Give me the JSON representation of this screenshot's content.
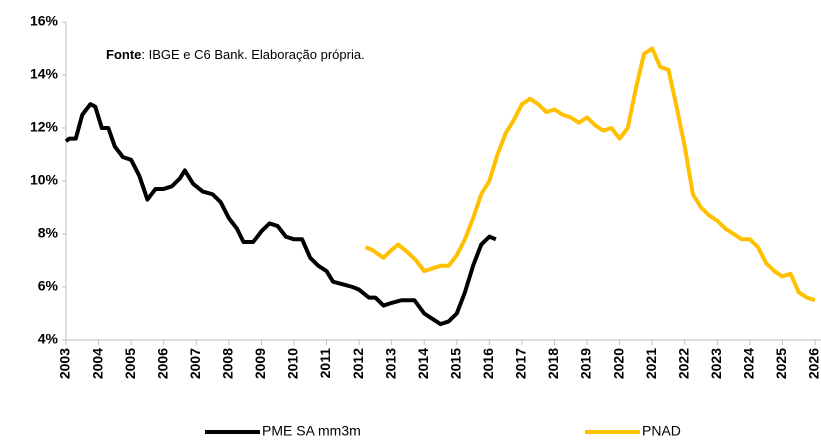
{
  "chart_data": {
    "type": "line",
    "annotation": {
      "bold": "Fonte",
      "text": ": IBGE e C6 Bank. Elaboração própria."
    },
    "xlim": [
      2003,
      2026
    ],
    "xticks": [
      2003,
      2004,
      2005,
      2006,
      2007,
      2008,
      2009,
      2010,
      2011,
      2012,
      2013,
      2014,
      2015,
      2016,
      2017,
      2018,
      2019,
      2020,
      2021,
      2022,
      2023,
      2024,
      2025,
      2026
    ],
    "ylim": [
      4,
      16
    ],
    "yticks": [
      {
        "value": 4,
        "label": "4%"
      },
      {
        "value": 6,
        "label": "6%"
      },
      {
        "value": 8,
        "label": "8%"
      },
      {
        "value": 10,
        "label": "10%"
      },
      {
        "value": 12,
        "label": "12%"
      },
      {
        "value": 14,
        "label": "14%"
      },
      {
        "value": 16,
        "label": "16%"
      }
    ],
    "grid": false,
    "series": [
      {
        "name": "PME SA mm3m",
        "color": "#000000",
        "x": [
          2003.0,
          2003.1,
          2003.3,
          2003.5,
          2003.75,
          2003.9,
          2004.1,
          2004.3,
          2004.5,
          2004.75,
          2005.0,
          2005.25,
          2005.5,
          2005.75,
          2006.0,
          2006.25,
          2006.5,
          2006.65,
          2006.9,
          2007.2,
          2007.5,
          2007.75,
          2008.0,
          2008.25,
          2008.45,
          2008.75,
          2009.0,
          2009.25,
          2009.5,
          2009.75,
          2010.0,
          2010.25,
          2010.5,
          2010.75,
          2011.0,
          2011.2,
          2011.5,
          2011.8,
          2012.0,
          2012.3,
          2012.5,
          2012.75,
          2013.0,
          2013.3,
          2013.5,
          2013.7,
          2014.0,
          2014.25,
          2014.5,
          2014.75,
          2015.0,
          2015.25,
          2015.5,
          2015.75,
          2016.0,
          2016.2
        ],
        "values": [
          11.5,
          11.6,
          11.6,
          12.5,
          12.9,
          12.8,
          12.0,
          12.0,
          11.3,
          10.9,
          10.8,
          10.2,
          9.3,
          9.7,
          9.7,
          9.8,
          10.1,
          10.4,
          9.9,
          9.6,
          9.5,
          9.2,
          8.6,
          8.2,
          7.7,
          7.7,
          8.1,
          8.4,
          8.3,
          7.9,
          7.8,
          7.8,
          7.1,
          6.8,
          6.6,
          6.2,
          6.1,
          6.0,
          5.9,
          5.6,
          5.6,
          5.3,
          5.4,
          5.5,
          5.5,
          5.5,
          5.0,
          4.8,
          4.6,
          4.7,
          5.0,
          5.8,
          6.8,
          7.6,
          7.9,
          7.8
        ]
      },
      {
        "name": "PNAD",
        "color": "#ffc000",
        "x": [
          2012.2,
          2012.4,
          2012.75,
          2013.0,
          2013.2,
          2013.5,
          2013.75,
          2014.0,
          2014.25,
          2014.5,
          2014.75,
          2015.0,
          2015.25,
          2015.5,
          2015.75,
          2016.0,
          2016.25,
          2016.5,
          2016.75,
          2017.0,
          2017.25,
          2017.5,
          2017.75,
          2018.0,
          2018.25,
          2018.5,
          2018.75,
          2019.0,
          2019.25,
          2019.5,
          2019.75,
          2020.0,
          2020.25,
          2020.5,
          2020.75,
          2021.0,
          2021.25,
          2021.5,
          2021.75,
          2022.0,
          2022.25,
          2022.5,
          2022.75,
          2023.0,
          2023.25,
          2023.5,
          2023.75,
          2024.0,
          2024.25,
          2024.5,
          2024.75,
          2025.0,
          2025.25,
          2025.5,
          2025.75,
          2026.0
        ],
        "values": [
          7.5,
          7.4,
          7.1,
          7.4,
          7.6,
          7.3,
          7.0,
          6.6,
          6.7,
          6.8,
          6.8,
          7.2,
          7.8,
          8.6,
          9.5,
          10.0,
          11.0,
          11.8,
          12.3,
          12.9,
          13.1,
          12.9,
          12.6,
          12.7,
          12.5,
          12.4,
          12.2,
          12.4,
          12.1,
          11.9,
          12.0,
          11.6,
          12.0,
          13.5,
          14.8,
          15.0,
          14.3,
          14.2,
          12.8,
          11.3,
          9.5,
          9.0,
          8.7,
          8.5,
          8.2,
          8.0,
          7.8,
          7.8,
          7.5,
          6.9,
          6.6,
          6.4,
          6.5,
          5.8,
          5.6,
          5.5
        ]
      }
    ]
  }
}
